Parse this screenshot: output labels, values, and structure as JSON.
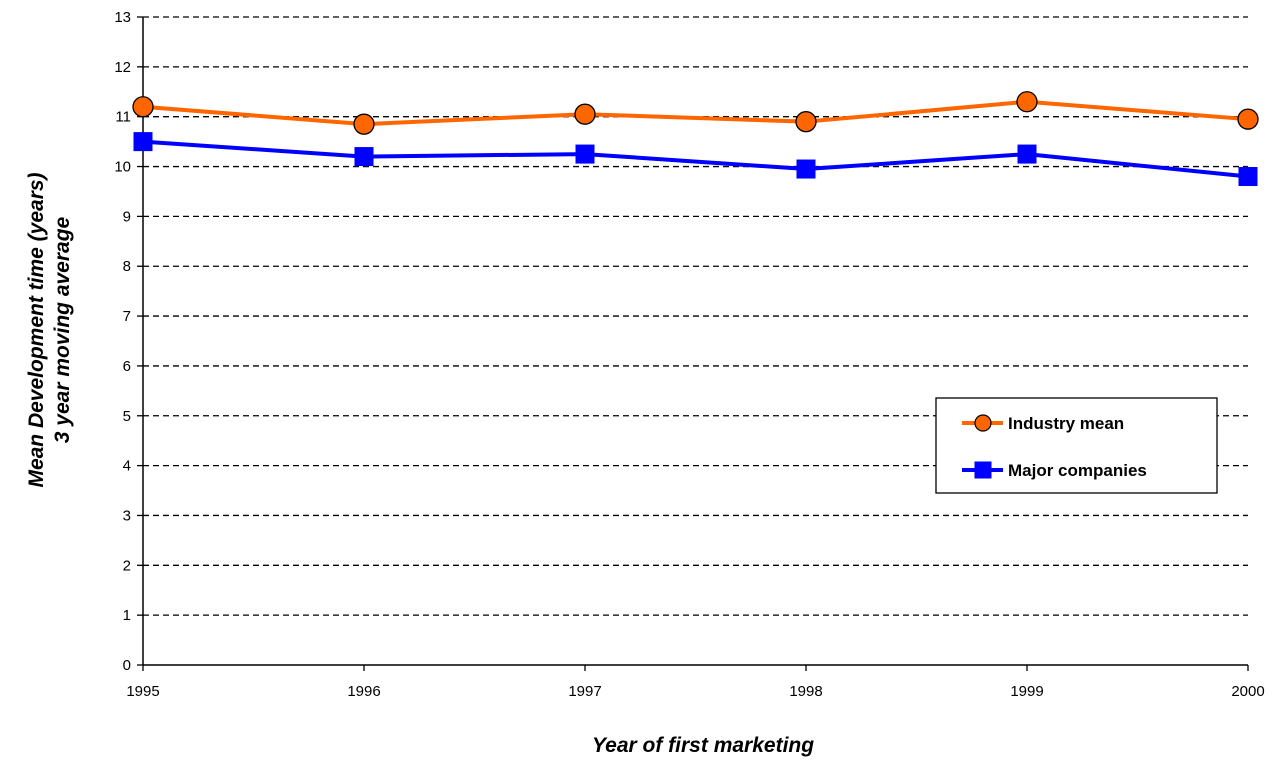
{
  "chart_data": {
    "type": "line",
    "title": "",
    "xlabel": "Year of first marketing",
    "ylabel_line1": "Mean Development time (years)",
    "ylabel_line2": "3 year moving average",
    "x": [
      "1995",
      "1996",
      "1997",
      "1998",
      "1999",
      "2000"
    ],
    "ylim": [
      0,
      13
    ],
    "yticks": [
      "0",
      "1",
      "2",
      "3",
      "4",
      "5",
      "6",
      "7",
      "8",
      "9",
      "10",
      "11",
      "12",
      "13"
    ],
    "grid": true,
    "grid_style": "dashed",
    "legend_position": "right",
    "series": [
      {
        "name": "Industry mean",
        "values": [
          11.2,
          10.85,
          11.05,
          10.9,
          11.3,
          10.95
        ],
        "color": "#ff6600",
        "marker": "circle",
        "marker_fill": "#ff6600"
      },
      {
        "name": "Major companies",
        "values": [
          10.5,
          10.2,
          10.25,
          9.95,
          10.25,
          9.8
        ],
        "color": "#0000ff",
        "marker": "square",
        "marker_fill": "#0000ff"
      }
    ]
  }
}
